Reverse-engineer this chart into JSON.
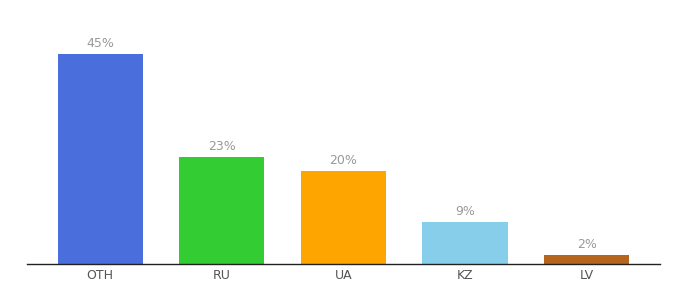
{
  "categories": [
    "OTH",
    "RU",
    "UA",
    "KZ",
    "LV"
  ],
  "values": [
    45,
    23,
    20,
    9,
    2
  ],
  "labels": [
    "45%",
    "23%",
    "20%",
    "9%",
    "2%"
  ],
  "bar_colors": [
    "#4a6fdc",
    "#33cc33",
    "#ffa500",
    "#87ceeb",
    "#b5651d"
  ],
  "label_color": "#999999",
  "ylim": [
    0,
    52
  ],
  "background_color": "#ffffff",
  "label_fontsize": 9,
  "tick_fontsize": 9,
  "bar_width": 0.7,
  "figsize": [
    6.8,
    3.0
  ],
  "dpi": 100
}
